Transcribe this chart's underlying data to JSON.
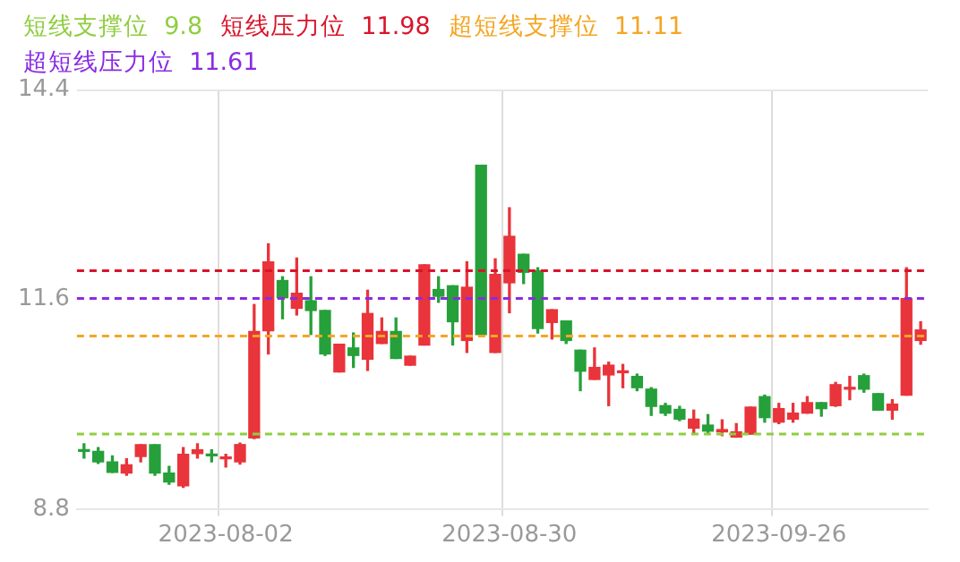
{
  "chart_data": {
    "type": "candlestick",
    "categories": [
      null,
      null,
      null,
      null,
      null,
      null,
      null,
      null,
      null,
      null,
      "2023-08-02",
      null,
      null,
      null,
      null,
      null,
      null,
      null,
      null,
      null,
      null,
      null,
      null,
      null,
      null,
      null,
      null,
      null,
      null,
      null,
      "2023-08-30",
      null,
      null,
      null,
      null,
      null,
      null,
      null,
      null,
      null,
      null,
      null,
      null,
      null,
      null,
      null,
      null,
      null,
      null,
      "2023-09-26",
      null,
      null,
      null,
      null,
      null,
      null,
      null,
      null,
      null,
      null
    ],
    "ohlc": [
      [
        9.58,
        9.67,
        9.48,
        9.57
      ],
      [
        9.57,
        9.62,
        9.41,
        9.43
      ],
      [
        9.43,
        9.51,
        9.29,
        9.29
      ],
      [
        9.28,
        9.47,
        9.25,
        9.39
      ],
      [
        9.5,
        9.66,
        9.43,
        9.66
      ],
      [
        9.66,
        9.66,
        9.25,
        9.28
      ],
      [
        9.28,
        9.37,
        9.13,
        9.16
      ],
      [
        9.11,
        9.62,
        9.09,
        9.53
      ],
      [
        9.54,
        9.67,
        9.48,
        9.59
      ],
      [
        9.52,
        9.59,
        9.43,
        9.51
      ],
      [
        9.47,
        9.53,
        9.36,
        9.48
      ],
      [
        9.43,
        9.68,
        9.4,
        9.66
      ],
      [
        9.75,
        11.53,
        9.74,
        11.17
      ],
      [
        11.18,
        12.34,
        10.87,
        12.1
      ],
      [
        11.85,
        11.9,
        11.34,
        11.62
      ],
      [
        11.48,
        12.15,
        11.39,
        11.68
      ],
      [
        11.58,
        11.9,
        11.13,
        11.45
      ],
      [
        11.45,
        11.45,
        10.85,
        10.87
      ],
      [
        10.63,
        11.0,
        10.63,
        11.0
      ],
      [
        10.95,
        11.15,
        10.69,
        10.85
      ],
      [
        10.8,
        11.72,
        10.65,
        11.41
      ],
      [
        11.01,
        11.35,
        11.01,
        11.17
      ],
      [
        11.17,
        11.35,
        10.81,
        10.81
      ],
      [
        10.72,
        10.84,
        10.72,
        10.84
      ],
      [
        10.99,
        12.06,
        10.99,
        12.06
      ],
      [
        11.73,
        11.9,
        11.56,
        11.64
      ],
      [
        11.78,
        11.78,
        10.99,
        11.3
      ],
      [
        11.05,
        12.1,
        10.89,
        11.76
      ],
      [
        13.39,
        13.39,
        11.13,
        11.13
      ],
      [
        10.89,
        12.14,
        10.89,
        11.93
      ],
      [
        11.82,
        12.82,
        11.42,
        12.44
      ],
      [
        12.2,
        12.2,
        11.81,
        11.96
      ],
      [
        11.98,
        12.02,
        11.15,
        11.21
      ],
      [
        11.29,
        11.46,
        11.07,
        11.46
      ],
      [
        11.31,
        11.31,
        11.01,
        11.05
      ],
      [
        10.92,
        10.92,
        10.38,
        10.64
      ],
      [
        10.53,
        10.95,
        10.53,
        10.69
      ],
      [
        10.59,
        10.76,
        10.18,
        10.72
      ],
      [
        10.62,
        10.73,
        10.42,
        10.63
      ],
      [
        10.57,
        10.6,
        10.38,
        10.42
      ],
      [
        10.4,
        10.42,
        10.05,
        10.17
      ],
      [
        10.18,
        10.21,
        10.05,
        10.08
      ],
      [
        10.13,
        10.17,
        9.98,
        10.0
      ],
      [
        9.88,
        10.12,
        9.82,
        10.0
      ],
      [
        9.92,
        10.06,
        9.82,
        9.84
      ],
      [
        9.83,
        9.99,
        9.78,
        9.86
      ],
      [
        9.76,
        9.94,
        9.76,
        9.83
      ],
      [
        9.8,
        10.16,
        9.8,
        10.16
      ],
      [
        10.3,
        10.32,
        9.96,
        10.02
      ],
      [
        9.96,
        10.21,
        9.94,
        10.14
      ],
      [
        10.0,
        10.21,
        9.96,
        10.08
      ],
      [
        10.08,
        10.3,
        10.08,
        10.22
      ],
      [
        10.22,
        10.22,
        10.04,
        10.14
      ],
      [
        10.18,
        10.49,
        10.17,
        10.46
      ],
      [
        10.4,
        10.57,
        10.26,
        10.41
      ],
      [
        10.58,
        10.6,
        10.36,
        10.4
      ],
      [
        10.34,
        10.34,
        10.12,
        10.12
      ],
      [
        10.12,
        10.26,
        10.0,
        10.2
      ],
      [
        10.32,
        12.02,
        10.32,
        11.61
      ],
      [
        11.05,
        11.3,
        11.0,
        11.19
      ]
    ],
    "colors": [
      "#26a03a",
      "#26a03a",
      "#26a03a",
      "#e8343a",
      "#e8343a",
      "#26a03a",
      "#26a03a",
      "#e8343a",
      "#e8343a",
      "#26a03a",
      "#e8343a",
      "#e8343a",
      "#e8343a",
      "#e8343a",
      "#26a03a",
      "#e8343a",
      "#26a03a",
      "#26a03a",
      "#e8343a",
      "#26a03a",
      "#e8343a",
      "#e8343a",
      "#26a03a",
      "#e8343a",
      "#e8343a",
      "#26a03a",
      "#26a03a",
      "#e8343a",
      "#26a03a",
      "#e8343a",
      "#e8343a",
      "#26a03a",
      "#26a03a",
      "#e8343a",
      "#26a03a",
      "#26a03a",
      "#e8343a",
      "#e8343a",
      "#e8343a",
      "#26a03a",
      "#26a03a",
      "#26a03a",
      "#26a03a",
      "#e8343a",
      "#26a03a",
      "#e8343a",
      "#e8343a",
      "#e8343a",
      "#26a03a",
      "#e8343a",
      "#e8343a",
      "#e8343a",
      "#26a03a",
      "#e8343a",
      "#e8343a",
      "#26a03a",
      "#26a03a",
      "#e8343a",
      "#e8343a",
      "#e8343a"
    ],
    "ylim": [
      8.8,
      14.4
    ],
    "yticks": [
      14.4,
      11.6,
      8.8
    ],
    "grid": "x",
    "ref_lines": [
      {
        "axis": "y",
        "value": 9.8,
        "label": "短线支撑位  9.8",
        "color": "#8fce3f",
        "line_style": "dashed"
      },
      {
        "axis": "y",
        "value": 11.98,
        "label": "短线压力位  11.98",
        "color": "#d9142b",
        "line_style": "dashed"
      },
      {
        "axis": "y",
        "value": 11.11,
        "label": "超短线支撑位  11.11",
        "color": "#f5a623",
        "line_style": "dashed"
      },
      {
        "axis": "y",
        "value": 11.61,
        "label": "超短线压力位  11.61",
        "color": "#8a2be2",
        "line_style": "dashed"
      }
    ]
  }
}
